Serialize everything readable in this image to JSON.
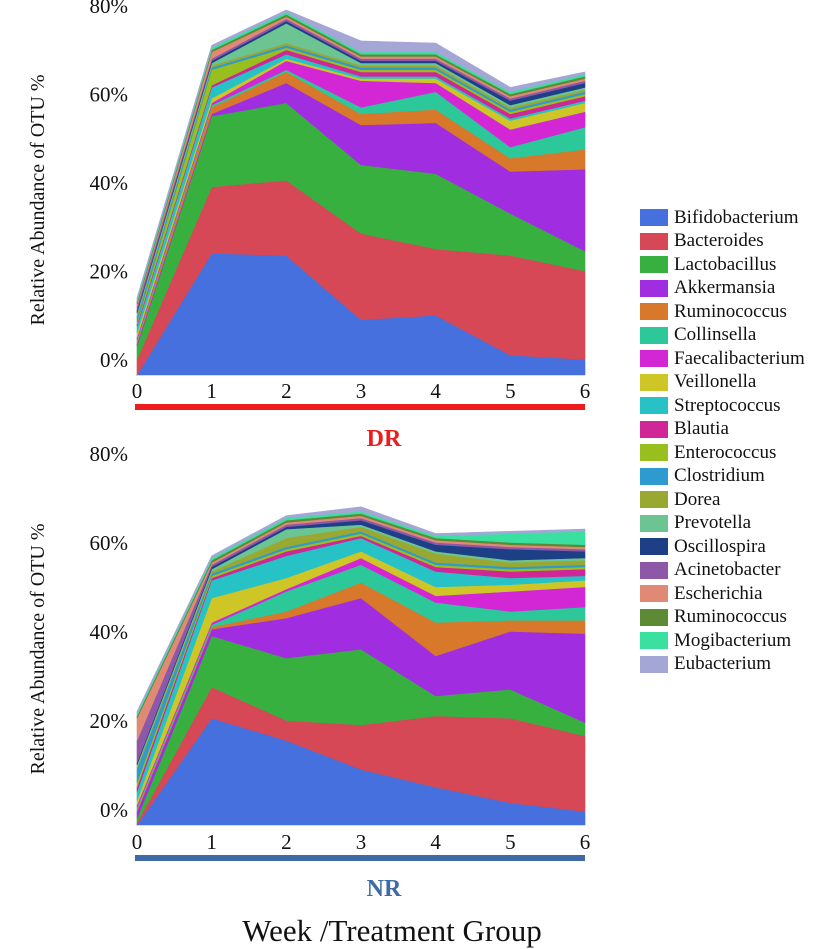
{
  "chart_data": [
    {
      "type": "area",
      "stacked": true,
      "group_label": "DR",
      "group_color": "#ee1c1c",
      "ylabel": "Relative Abundance of OTU %",
      "xlabel": "Week /Treatment Group",
      "x": [
        "0",
        "1",
        "2",
        "3",
        "4",
        "5",
        "6"
      ],
      "ylim": [
        0,
        80
      ],
      "yticks": [
        "0%",
        "20%",
        "40%",
        "60%",
        "80%"
      ],
      "series": [
        {
          "name": "Bifidobacterium",
          "values": [
            0,
            27.5,
            27,
            12.5,
            13.5,
            4.5,
            3.5
          ]
        },
        {
          "name": "Bacteroides",
          "values": [
            3.5,
            15,
            17,
            19.5,
            15,
            22.5,
            20
          ]
        },
        {
          "name": "Lactobacillus",
          "values": [
            3,
            16,
            17.5,
            15.5,
            17,
            9.5,
            4.5
          ]
        },
        {
          "name": "Akkermansia",
          "values": [
            0.5,
            0.5,
            4.5,
            9,
            11.5,
            9.5,
            18.5
          ]
        },
        {
          "name": "Ruminococcus",
          "values": [
            0.5,
            1.5,
            2.5,
            2.5,
            3,
            3,
            4.5
          ]
        },
        {
          "name": "Collinsella",
          "values": [
            0.5,
            0.5,
            0.5,
            1.5,
            4,
            2.5,
            5
          ]
        },
        {
          "name": "Faecalibacterium",
          "values": [
            0.5,
            0.5,
            2,
            6,
            2,
            4,
            3.5
          ]
        },
        {
          "name": "Veillonella",
          "values": [
            1,
            1,
            0.5,
            0.5,
            1,
            2,
            2
          ]
        },
        {
          "name": "Streptococcus",
          "values": [
            1.5,
            2.5,
            1,
            0.5,
            0.5,
            0.5,
            0.5
          ]
        },
        {
          "name": "Blautia",
          "values": [
            0.5,
            0.5,
            1,
            1,
            1,
            1,
            1
          ]
        },
        {
          "name": "Enterococcus",
          "values": [
            0.5,
            3.5,
            0.5,
            0.5,
            0.5,
            0.5,
            0.5
          ]
        },
        {
          "name": "Clostridium",
          "values": [
            1,
            0.5,
            0.5,
            0.5,
            0.5,
            0.5,
            0.5
          ]
        },
        {
          "name": "Dorea",
          "values": [
            0.5,
            0.5,
            0.5,
            0.5,
            0.5,
            0.5,
            0.5
          ]
        },
        {
          "name": "Prevotella",
          "values": [
            0.5,
            0.5,
            4.5,
            0.5,
            0.5,
            0.5,
            0.5
          ]
        },
        {
          "name": "Oscillospira",
          "values": [
            0.5,
            0.5,
            0.5,
            0.5,
            0.5,
            1,
            1
          ]
        },
        {
          "name": "Acinetobacter",
          "values": [
            1,
            0.5,
            0.5,
            0.5,
            0.5,
            0.5,
            0.5
          ]
        },
        {
          "name": "Escherichia",
          "values": [
            0.5,
            1.5,
            0.5,
            0.5,
            0.5,
            0.5,
            0.5
          ]
        },
        {
          "name": "Ruminococcus",
          "values": [
            0.5,
            0.5,
            0.5,
            0.5,
            0.5,
            0.5,
            0.5
          ]
        },
        {
          "name": "Mogibacterium",
          "values": [
            0.5,
            0.5,
            0.5,
            0.5,
            0.5,
            0.5,
            0.5
          ]
        },
        {
          "name": "Eubacterium",
          "values": [
            0.5,
            0.5,
            0.5,
            2.5,
            2,
            1,
            0.5
          ]
        }
      ]
    },
    {
      "type": "area",
      "stacked": true,
      "group_label": "NR",
      "group_color": "#3e6aa6",
      "ylabel": "Relative Abundance of OTU %",
      "xlabel": "Week /Treatment Group",
      "x": [
        "0",
        "1",
        "2",
        "3",
        "4",
        "5",
        "6"
      ],
      "ylim": [
        0,
        80
      ],
      "yticks": [
        "0%",
        "20%",
        "40%",
        "60%",
        "80%"
      ],
      "series": [
        {
          "name": "Bifidobacterium",
          "values": [
            0,
            24,
            19,
            12.5,
            8.5,
            5,
            3
          ]
        },
        {
          "name": "Bacteroides",
          "values": [
            0.5,
            7,
            4.5,
            10,
            16,
            19,
            17
          ]
        },
        {
          "name": "Lactobacillus",
          "values": [
            1,
            11.5,
            14,
            17,
            4.5,
            6.5,
            3
          ]
        },
        {
          "name": "Akkermansia",
          "values": [
            1.5,
            1.5,
            9,
            11.5,
            9,
            13,
            20
          ]
        },
        {
          "name": "Ruminococcus",
          "values": [
            0.5,
            0.5,
            1.5,
            3.5,
            7.5,
            2.5,
            3
          ]
        },
        {
          "name": "Collinsella",
          "values": [
            0.5,
            0.5,
            4.5,
            4,
            4.5,
            2,
            3
          ]
        },
        {
          "name": "Faecalibacterium",
          "values": [
            0.5,
            0.5,
            0.5,
            1.5,
            1.5,
            4.5,
            4.5
          ]
        },
        {
          "name": "Veillonella",
          "values": [
            1,
            5.5,
            2.5,
            1.5,
            2,
            1.5,
            1.5
          ]
        },
        {
          "name": "Streptococcus",
          "values": [
            2,
            4,
            5,
            3,
            3.5,
            1.5,
            1
          ]
        },
        {
          "name": "Blautia",
          "values": [
            1,
            0.5,
            1,
            0.5,
            1,
            1.5,
            1.5
          ]
        },
        {
          "name": "Enterococcus",
          "values": [
            1,
            0.5,
            0.5,
            0.5,
            0.5,
            0.5,
            0.5
          ]
        },
        {
          "name": "Clostridium",
          "values": [
            3,
            0.5,
            0.5,
            0.5,
            0.5,
            0.5,
            0.5
          ]
        },
        {
          "name": "Dorea",
          "values": [
            0.5,
            0.5,
            2,
            1,
            2,
            1,
            1
          ]
        },
        {
          "name": "Prevotella",
          "values": [
            0.5,
            0.5,
            2,
            0.5,
            0.5,
            0.5,
            0.5
          ]
        },
        {
          "name": "Oscillospira",
          "values": [
            0.5,
            0.5,
            0.5,
            1,
            1.5,
            2.5,
            1.5
          ]
        },
        {
          "name": "Acinetobacter",
          "values": [
            5,
            0.5,
            0.5,
            0.5,
            0.5,
            0.5,
            0.5
          ]
        },
        {
          "name": "Escherichia",
          "values": [
            5,
            0.5,
            0.5,
            0.5,
            0.5,
            0.5,
            0.5
          ]
        },
        {
          "name": "Ruminococcus",
          "values": [
            0.5,
            0.5,
            0.5,
            0.5,
            0.5,
            0.5,
            0.5
          ]
        },
        {
          "name": "Mogibacterium",
          "values": [
            0.5,
            0.5,
            0.5,
            0.5,
            0.5,
            2,
            3
          ]
        },
        {
          "name": "Eubacterium",
          "values": [
            0.5,
            0.5,
            0.5,
            1,
            0.5,
            0.5,
            0.5
          ]
        }
      ]
    }
  ],
  "legend": {
    "placement": "right",
    "items": [
      {
        "name": "Bifidobacterium",
        "color": "#4570dd"
      },
      {
        "name": "Bacteroides",
        "color": "#d64856"
      },
      {
        "name": "Lactobacillus",
        "color": "#38b040"
      },
      {
        "name": "Akkermansia",
        "color": "#a02ee0"
      },
      {
        "name": "Ruminococcus",
        "color": "#d8782a"
      },
      {
        "name": "Collinsella",
        "color": "#2cc89a"
      },
      {
        "name": "Faecalibacterium",
        "color": "#d327d6"
      },
      {
        "name": "Veillonella",
        "color": "#cdc626"
      },
      {
        "name": "Streptococcus",
        "color": "#27c2c6"
      },
      {
        "name": "Blautia",
        "color": "#d02697"
      },
      {
        "name": "Enterococcus",
        "color": "#99bf1e"
      },
      {
        "name": "Clostridium",
        "color": "#2d9bcf"
      },
      {
        "name": "Dorea",
        "color": "#98a830"
      },
      {
        "name": "Prevotella",
        "color": "#6cc493"
      },
      {
        "name": "Oscillospira",
        "color": "#1d3f86"
      },
      {
        "name": "Acinetobacter",
        "color": "#8e58a8"
      },
      {
        "name": "Escherichia",
        "color": "#e08a76"
      },
      {
        "name": "Ruminococcus",
        "color": "#5d8a35"
      },
      {
        "name": "Mogibacterium",
        "color": "#39e0a0"
      },
      {
        "name": "Eubacterium",
        "color": "#a4a6d6"
      }
    ]
  }
}
